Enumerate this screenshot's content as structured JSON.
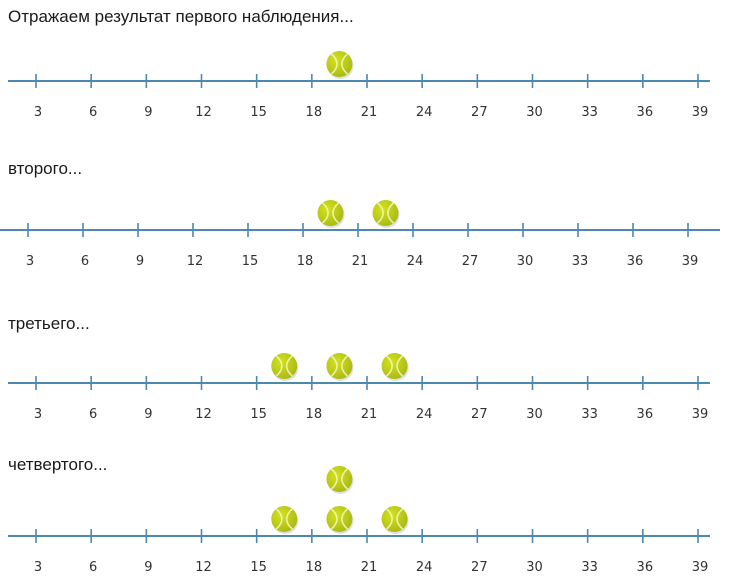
{
  "colors": {
    "axis": "#4d89ad",
    "ball": "#d4e21f",
    "ball_shade": "#a9b815",
    "seam": "#f4f8c2"
  },
  "ball_icon": "tennis-ball-icon",
  "tick_labels": [
    "3",
    "6",
    "9",
    "12",
    "15",
    "18",
    "21",
    "24",
    "27",
    "30",
    "33",
    "36",
    "39"
  ],
  "panels": [
    {
      "caption": "Отражаем результат первого наблюдения...",
      "observations": [
        19.5
      ]
    },
    {
      "caption": "второго...",
      "observations": [
        19.5,
        22.5
      ]
    },
    {
      "caption": "третьего...",
      "observations": [
        16.5,
        19.5,
        22.5
      ]
    },
    {
      "caption": "четвертого...",
      "observations": [
        16.5,
        19.5,
        19.5,
        22.5
      ]
    }
  ]
}
